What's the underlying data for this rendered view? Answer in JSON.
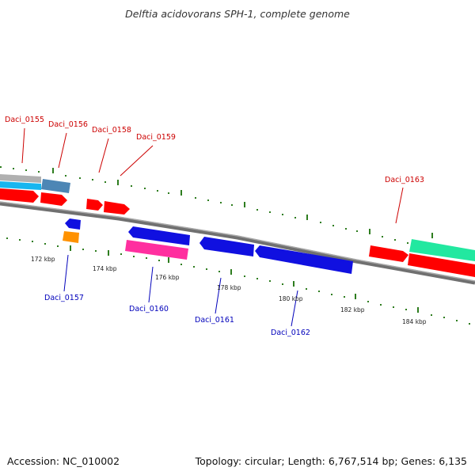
{
  "title": "Delftia acidovorans SPH-1, complete genome",
  "footer": {
    "accession": "Accession: NC_010002",
    "topology": "Topology: circular; Length: 6,767,514 bp; Genes: 6,135"
  },
  "scale_ticks": [
    "172 kbp",
    "174 kbp",
    "176 kbp",
    "178 kbp",
    "180 kbp",
    "182 kbp",
    "184 kbp"
  ],
  "gene_labels": {
    "forward": [
      "Daci_0155",
      "Daci_0156",
      "Daci_0158",
      "Daci_0159",
      "Daci_0163"
    ],
    "reverse": [
      "Daci_0157",
      "Daci_0160",
      "Daci_0161",
      "Daci_0162"
    ]
  },
  "colors": {
    "forward_label": "#cc0000",
    "reverse_label": "#0000bb",
    "backbone": "#808080",
    "tick_mark": "#2e7d1f",
    "red_gene": "#ff0000",
    "blue_gene": "#1010e0",
    "cyan_gene": "#17b6f0",
    "steel_gene": "#4d86b5",
    "grey_gene": "#b0b0b0",
    "magenta_gene": "#ff2f9f",
    "orange_gene": "#ff9200",
    "teal_gene": "#22e8a0"
  }
}
